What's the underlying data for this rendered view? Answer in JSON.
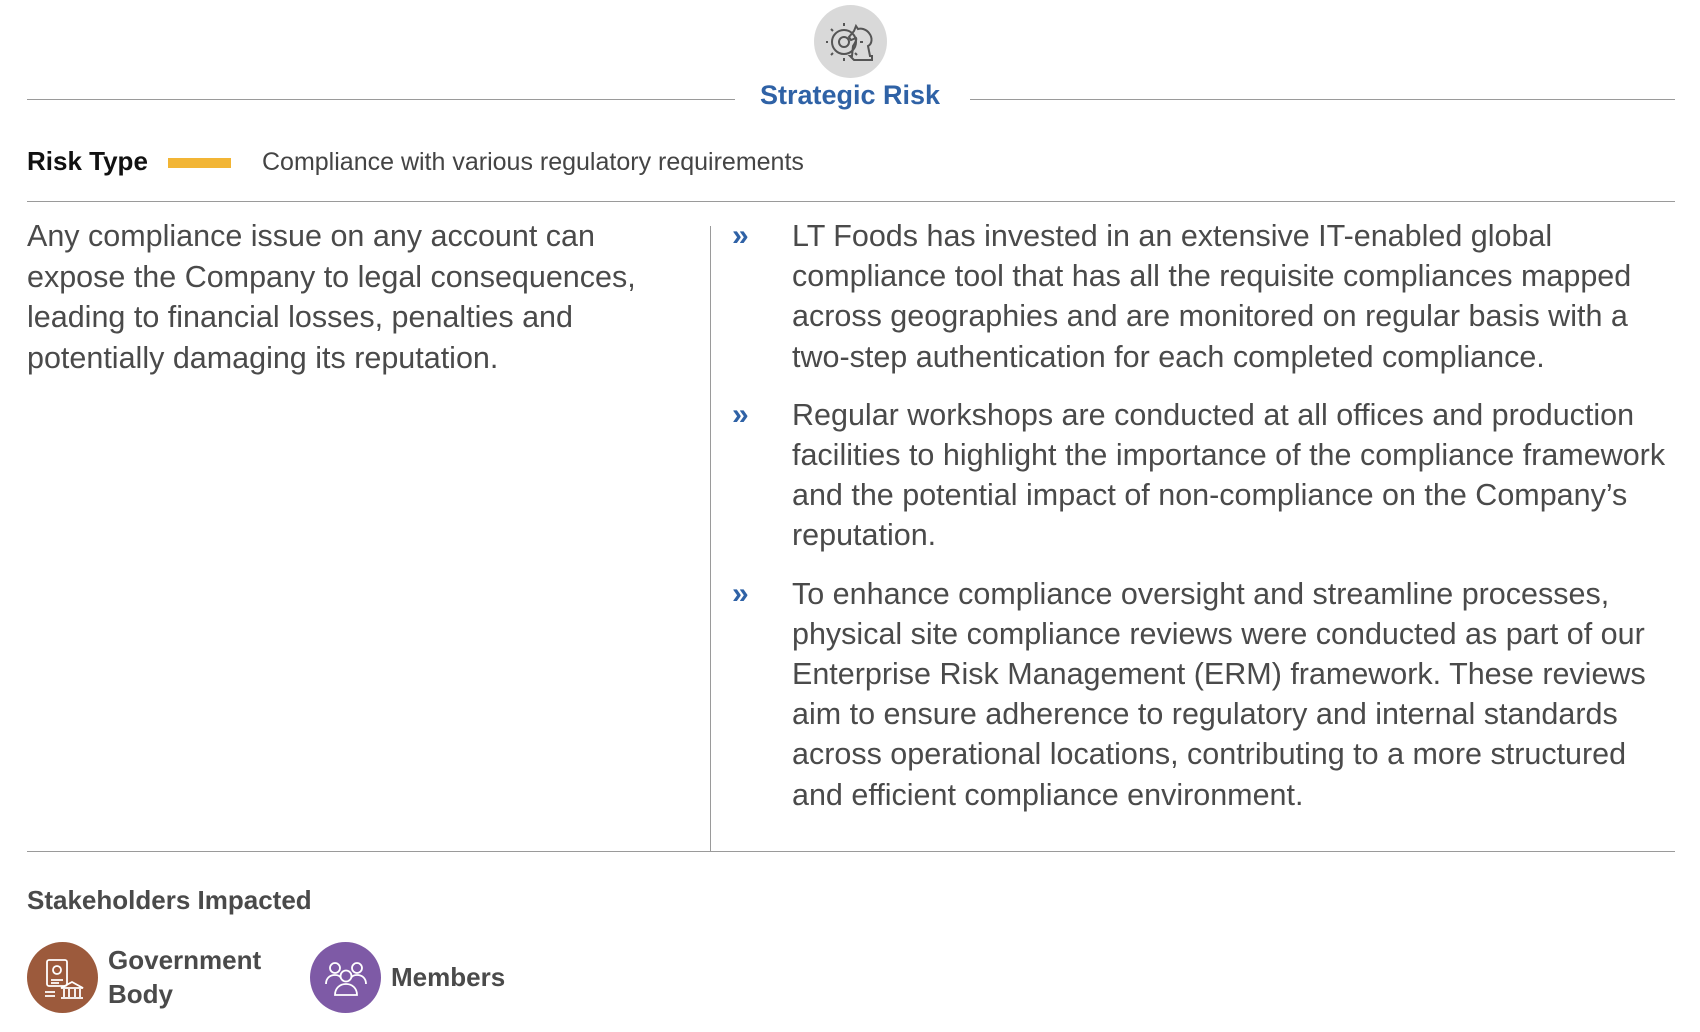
{
  "header": {
    "icon": "chess-knight-gear-icon",
    "category": "Strategic Risk"
  },
  "risk_type": {
    "label": "Risk Type",
    "value": "Compliance with various regulatory requirements",
    "accent_color": "#f2b535"
  },
  "description": "Any compliance issue on any account can expose the Company to legal consequences, leading to financial losses, penalties and potentially damaging its reputation.",
  "mitigations": {
    "bullet": "»",
    "items": [
      "LT Foods has invested in an extensive IT-enabled global compliance tool that has all the requisite compliances mapped across geographies and are monitored on regular basis with a two-step authentication for each completed compliance.",
      "Regular workshops are conducted at all offices and production facilities to highlight the importance of the compliance framework and the potential impact of non-compliance on the Company’s reputation.",
      "To enhance compliance oversight and streamline processes, physical site compliance reviews were conducted as part of our Enterprise Risk Management (ERM) framework. These reviews aim to ensure adherence to regulatory and internal standards across operational locations, contributing to a more structured and efficient compliance environment."
    ]
  },
  "stakeholders": {
    "title": "Stakeholders Impacted",
    "items": [
      {
        "label_line1": "Government",
        "label_line2": "Body",
        "icon": "government-building-icon",
        "color": "#9c5a3c"
      },
      {
        "label_line1": "Members",
        "label_line2": "",
        "icon": "people-group-icon",
        "color": "#7e5aa6"
      }
    ]
  },
  "colors": {
    "accent_blue": "#2f62a6",
    "rule_gray": "#9a9a9a"
  }
}
